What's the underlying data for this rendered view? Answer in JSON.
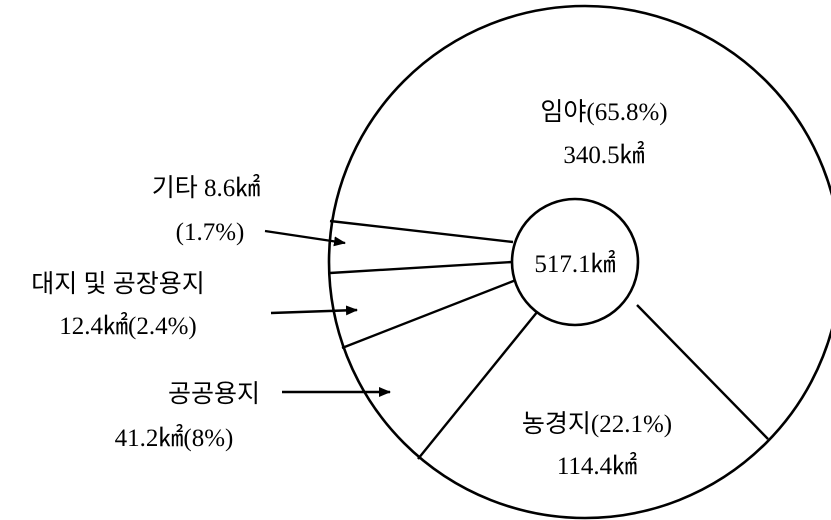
{
  "chart_data": {
    "type": "pie",
    "total": {
      "value": 517.1,
      "unit": "㎢",
      "label": "517.1㎢"
    },
    "slices": [
      {
        "name": "임야",
        "value": 340.5,
        "percent": 65.8,
        "label_line1": "임야(65.8%)",
        "label_line2": "340.5㎢"
      },
      {
        "name": "농경지",
        "value": 114.4,
        "percent": 22.1,
        "label_line1": "농경지(22.1%)",
        "label_line2": "114.4㎢"
      },
      {
        "name": "공공용지",
        "value": 41.2,
        "percent": 8,
        "label_line1": "공공용지",
        "label_line2": "41.2㎢(8%)"
      },
      {
        "name": "대지 및 공장용지",
        "value": 12.4,
        "percent": 2.4,
        "label_line1": "대지 및 공장용지",
        "label_line2": "12.4㎢(2.4%)"
      },
      {
        "name": "기타",
        "value": 8.6,
        "percent": 1.7,
        "label_line1": "기타 8.6㎢",
        "label_line2": "(1.7%)"
      }
    ],
    "title": "",
    "legend": "none",
    "colors": {
      "line": "#000000",
      "background": "#ffffff"
    }
  }
}
